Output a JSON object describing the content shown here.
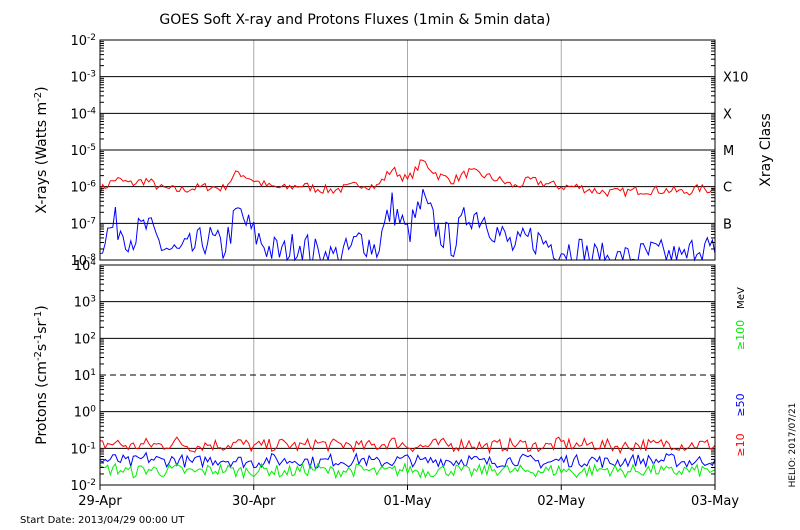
{
  "chart_data": [
    {
      "type": "line",
      "title": "GOES Soft X-ray and Protons Fluxes   (1min & 5min data)",
      "ylabel": "X-rays (Watts m^-2)",
      "right_label": "Xray Class",
      "y_scale": "log",
      "ylim": [
        1e-08,
        0.01
      ],
      "y_tick_labels": [
        "10^-8",
        "10^-7",
        "10^-6",
        "10^-5",
        "10^-4",
        "10^-3",
        "10^-2"
      ],
      "class_labels": [
        {
          "label": "B",
          "value": 1e-07
        },
        {
          "label": "C",
          "value": 1e-06
        },
        {
          "label": "M",
          "value": 1e-05
        },
        {
          "label": "X",
          "value": 0.0001
        },
        {
          "label": "X10",
          "value": 0.001
        }
      ],
      "x_range_days": [
        0,
        4
      ],
      "series": [
        {
          "color": "#ff0000",
          "x": [
            0,
            0.1,
            0.2,
            0.3,
            0.4,
            0.5,
            0.6,
            0.7,
            0.8,
            0.9,
            1.0,
            1.1,
            1.2,
            1.3,
            1.4,
            1.5,
            1.6,
            1.7,
            1.8,
            1.9,
            2.0,
            2.1,
            2.2,
            2.3,
            2.4,
            2.5,
            2.6,
            2.7,
            2.8,
            2.9,
            3.0,
            3.1,
            3.2,
            3.3,
            3.4,
            3.5,
            3.6,
            3.7,
            3.8,
            3.9,
            4.0
          ],
          "values": [
            8e-07,
            1.6e-06,
            1.2e-06,
            1.5e-06,
            9e-07,
            8e-07,
            9e-07,
            1e-06,
            9e-07,
            2.5e-06,
            1.5e-06,
            1e-06,
            9e-07,
            1.1e-06,
            9e-07,
            8e-07,
            9e-07,
            1.2e-06,
            1e-06,
            3e-06,
            1.5e-06,
            5e-06,
            2e-06,
            1.5e-06,
            2.5e-06,
            2e-06,
            1.5e-06,
            1e-06,
            1.5e-06,
            1.2e-06,
            1e-06,
            1e-06,
            8e-07,
            7e-07,
            7e-07,
            8e-07,
            8e-07,
            8e-07,
            7e-07,
            9e-07,
            8e-07
          ]
        },
        {
          "color": "#0000ff",
          "x": [
            0,
            0.1,
            0.2,
            0.3,
            0.4,
            0.5,
            0.6,
            0.7,
            0.8,
            0.9,
            1.0,
            1.1,
            1.2,
            1.3,
            1.4,
            1.5,
            1.6,
            1.7,
            1.8,
            1.9,
            2.0,
            2.1,
            2.2,
            2.3,
            2.4,
            2.5,
            2.6,
            2.7,
            2.8,
            2.9,
            3.0,
            3.1,
            3.2,
            3.3,
            3.4,
            3.5,
            3.6,
            3.7,
            3.8,
            3.9,
            4.0
          ],
          "values": [
            3e-08,
            1e-07,
            4e-08,
            8e-08,
            2.5e-08,
            1.5e-08,
            2e-08,
            4e-08,
            2e-08,
            2e-07,
            5e-08,
            2e-08,
            1.5e-08,
            3e-08,
            1.5e-08,
            1.2e-08,
            1.5e-08,
            4e-08,
            2e-08,
            3e-07,
            5e-08,
            4e-07,
            6e-08,
            3e-08,
            2e-07,
            1.5e-07,
            5e-08,
            2e-08,
            4e-08,
            3e-08,
            2e-08,
            2e-08,
            1.2e-08,
            1e-08,
            1e-08,
            1.2e-08,
            1.5e-08,
            1.2e-08,
            1e-08,
            3e-08,
            1.5e-08
          ]
        }
      ]
    },
    {
      "type": "line",
      "ylabel": "Protons (cm^-2 s^-1 sr^-1)",
      "y_scale": "log",
      "ylim": [
        0.01,
        10000
      ],
      "y_tick_labels": [
        "10^-2",
        "10^-1",
        "10^0",
        "10^1",
        "10^2",
        "10^3",
        "10^4"
      ],
      "dashed_level": 10,
      "unit_label": "MeV",
      "x": [
        0,
        0.1,
        0.2,
        0.3,
        0.4,
        0.5,
        0.6,
        0.7,
        0.8,
        0.9,
        1.0,
        1.1,
        1.2,
        1.3,
        1.4,
        1.5,
        1.6,
        1.7,
        1.8,
        1.9,
        2.0,
        2.1,
        2.2,
        2.3,
        2.4,
        2.5,
        2.6,
        2.7,
        2.8,
        2.9,
        3.0,
        3.1,
        3.2,
        3.3,
        3.4,
        3.5,
        3.6,
        3.7,
        3.8,
        3.9,
        4.0
      ],
      "series": [
        {
          "name": "≥10",
          "color": "#ff0000",
          "values": [
            0.12,
            0.14,
            0.11,
            0.13,
            0.12,
            0.15,
            0.11,
            0.13,
            0.12,
            0.14,
            0.11,
            0.12,
            0.13,
            0.11,
            0.14,
            0.12,
            0.13,
            0.11,
            0.12,
            0.15,
            0.12,
            0.11,
            0.13,
            0.12,
            0.14,
            0.11,
            0.12,
            0.13,
            0.12,
            0.11,
            0.14,
            0.12,
            0.13,
            0.12,
            0.11,
            0.13,
            0.12,
            0.14,
            0.12,
            0.13,
            0.12
          ]
        },
        {
          "name": "≥50",
          "color": "#0000ff",
          "values": [
            0.045,
            0.05,
            0.04,
            0.055,
            0.045,
            0.05,
            0.04,
            0.048,
            0.05,
            0.045,
            0.04,
            0.05,
            0.045,
            0.05,
            0.04,
            0.048,
            0.045,
            0.05,
            0.04,
            0.045,
            0.05,
            0.042,
            0.048,
            0.045,
            0.05,
            0.04,
            0.045,
            0.05,
            0.045,
            0.04,
            0.048,
            0.045,
            0.05,
            0.04,
            0.045,
            0.048,
            0.045,
            0.05,
            0.042,
            0.045,
            0.05
          ]
        },
        {
          "name": "≥100",
          "color": "#00ee00",
          "values": [
            0.025,
            0.028,
            0.022,
            0.027,
            0.024,
            0.026,
            0.022,
            0.025,
            0.027,
            0.023,
            0.025,
            0.026,
            0.022,
            0.025,
            0.028,
            0.023,
            0.025,
            0.026,
            0.022,
            0.024,
            0.027,
            0.023,
            0.025,
            0.026,
            0.022,
            0.025,
            0.027,
            0.023,
            0.025,
            0.024,
            0.026,
            0.022,
            0.025,
            0.027,
            0.023,
            0.025,
            0.026,
            0.022,
            0.025,
            0.024,
            0.026
          ]
        }
      ]
    }
  ],
  "x_tick_labels": [
    "29-Apr",
    "30-Apr",
    "01-May",
    "02-May",
    "03-May"
  ],
  "start_date": "Start Date: 2013/04/29 00:00 UT",
  "credit": "HELIO: 2017/07/21"
}
